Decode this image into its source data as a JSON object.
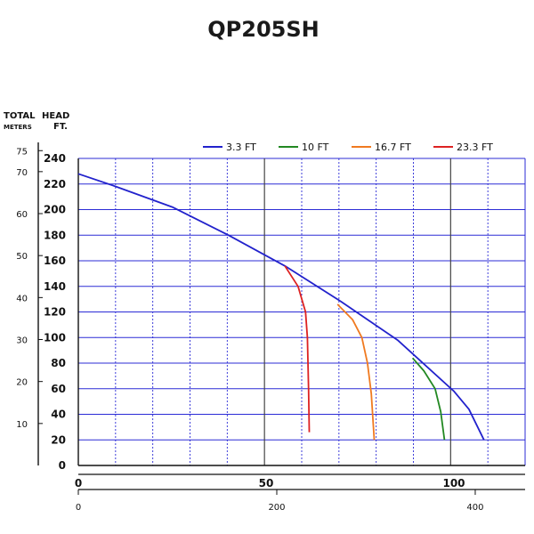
{
  "chart_data": {
    "type": "line",
    "title": "QP205SH",
    "axes": {
      "meters_label_top": "TOTAL",
      "meters_label_bottom": "METERS",
      "feet_label_top": "HEAD",
      "feet_label_bottom": "FT.",
      "meters_ticks": [
        "75",
        "70",
        "60",
        "50",
        "40",
        "30",
        "20",
        "10"
      ],
      "feet_ticks": [
        "240",
        "220",
        "200",
        "180",
        "160",
        "140",
        "120",
        "100",
        "80",
        "60",
        "40",
        "20",
        "0"
      ],
      "x_top_ticks": [
        "0",
        "50",
        "100"
      ],
      "x_bottom_ticks": [
        "0",
        "200",
        "400"
      ]
    },
    "ylim": [
      0,
      240
    ],
    "xlim": [
      0,
      118
    ],
    "grid": true,
    "legend_position": "top-right",
    "series": [
      {
        "name": "3.3 FT",
        "color": "#2222cc",
        "points": [
          [
            0,
            228
          ],
          [
            10,
            218
          ],
          [
            25,
            202
          ],
          [
            40,
            180
          ],
          [
            55,
            156
          ],
          [
            70,
            128
          ],
          [
            85,
            98
          ],
          [
            100,
            58
          ],
          [
            104,
            44
          ],
          [
            108,
            20
          ]
        ]
      },
      {
        "name": "10 FT",
        "color": "#228822",
        "points": [
          [
            89,
            84
          ],
          [
            92,
            74
          ],
          [
            95,
            60
          ],
          [
            96.5,
            42
          ],
          [
            97.5,
            20
          ]
        ]
      },
      {
        "name": "16.7 FT",
        "color": "#f07a20",
        "points": [
          [
            69,
            126
          ],
          [
            73,
            114
          ],
          [
            75.5,
            100
          ],
          [
            77,
            80
          ],
          [
            78,
            56
          ],
          [
            78.8,
            20
          ]
        ]
      },
      {
        "name": "23.3 FT",
        "color": "#dd2222",
        "points": [
          [
            55,
            156
          ],
          [
            58.5,
            140
          ],
          [
            60.5,
            120
          ],
          [
            61,
            100
          ],
          [
            61.3,
            60
          ],
          [
            61.5,
            26
          ]
        ]
      }
    ]
  }
}
